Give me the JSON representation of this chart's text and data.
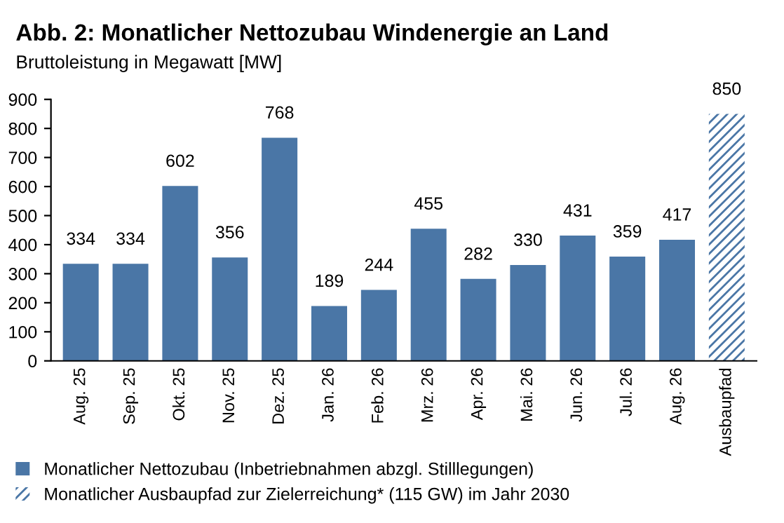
{
  "chart_data": {
    "type": "bar",
    "title": "Abb. 2: Monatlicher Nettozubau Windenergie an Land",
    "subtitle": "Bruttoleistung in Megawatt [MW]",
    "categories": [
      "Aug. 25",
      "Sep. 25",
      "Okt. 25",
      "Nov. 25",
      "Dez. 25",
      "Jan. 26",
      "Feb. 26",
      "Mrz. 26",
      "Apr. 26",
      "Mai. 26",
      "Jun. 26",
      "Jul. 26",
      "Aug. 26",
      "Ausbaupfad"
    ],
    "series": [
      {
        "name": "Monatlicher Nettozubau (Inbetriebnahmen abzgl. Stilllegungen)",
        "color": "#4a76a6",
        "values": [
          334,
          334,
          602,
          356,
          768,
          189,
          244,
          455,
          282,
          330,
          431,
          359,
          417,
          null
        ]
      },
      {
        "name": "Monatlicher Ausbaupfad zur Zielerreichung* (115 GW) im Jahr 2030",
        "color": "#4a76a6",
        "values": [
          null,
          null,
          null,
          null,
          null,
          null,
          null,
          null,
          null,
          null,
          null,
          null,
          null,
          850
        ]
      }
    ],
    "ylim": [
      0,
      900
    ],
    "yticks": [
      0,
      100,
      200,
      300,
      400,
      500,
      600,
      700,
      800,
      900
    ],
    "grid": false,
    "legend": "bottom",
    "data_labels": true
  }
}
